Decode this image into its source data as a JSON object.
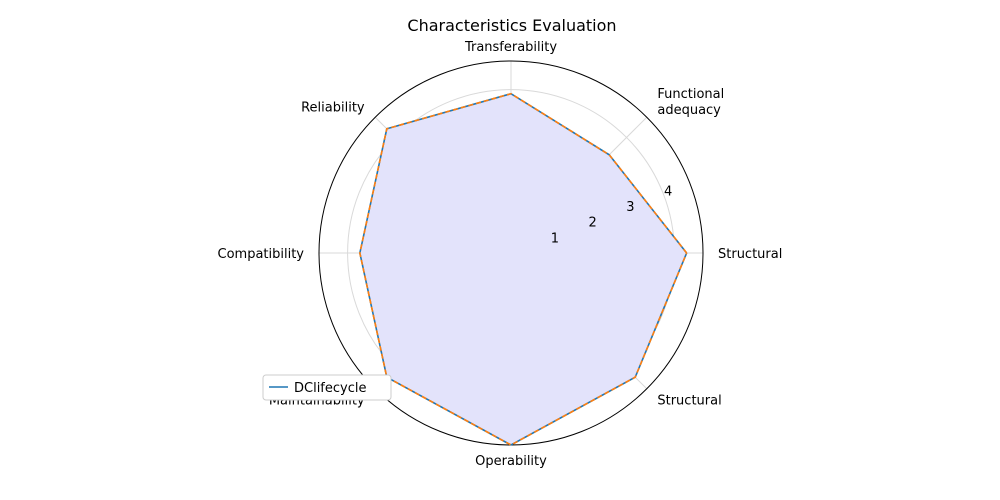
{
  "chart_data": {
    "type": "radar",
    "title": "Characteristics Evaluation",
    "categories": [
      "Structural",
      "Functional\nadequacy",
      "Transferability",
      "Reliability",
      "Compatibility",
      "Maintainability",
      "Operability",
      "Structural"
    ],
    "series": [
      {
        "name": "DClifecycle",
        "values": [
          4.3,
          3.4,
          3.9,
          4.3,
          3.7,
          4.3,
          4.7,
          4.3
        ],
        "color": "#1f77b4",
        "style": "solid"
      },
      {
        "name": "",
        "values": [
          4.3,
          3.4,
          3.9,
          4.3,
          3.7,
          4.3,
          4.7,
          4.3
        ],
        "color": "#ff7f0e",
        "style": "dashed"
      }
    ],
    "fill_color": "#e3e3fb",
    "rticks": [
      1,
      2,
      3,
      4
    ],
    "rlim": [
      0,
      4.7
    ],
    "grid": true,
    "legend_position": "lower-left"
  }
}
